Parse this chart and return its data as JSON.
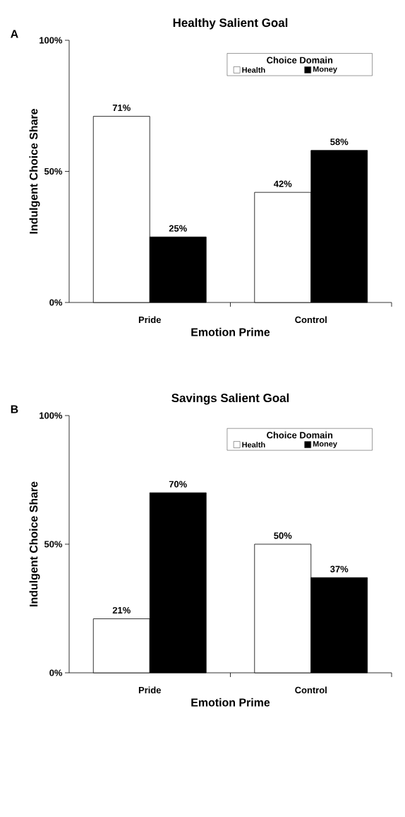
{
  "chart_data": [
    {
      "type": "bar",
      "title": "Healthy Salient Goal",
      "annotations": [
        "A"
      ],
      "xlabel": "Emotion Prime",
      "ylabel": "Indulgent Choice Share",
      "categories": [
        "Pride",
        "Control"
      ],
      "series": [
        {
          "name": "Health",
          "color": "#ffffff",
          "values": [
            71,
            42
          ],
          "value_labels": [
            "71%",
            "42%"
          ]
        },
        {
          "name": "Money",
          "color": "#000000",
          "values": [
            25,
            58
          ],
          "value_labels": [
            "25%",
            "58%"
          ]
        }
      ],
      "legend_title": "Choice Domain",
      "legend": "top right",
      "grid": false,
      "ylim": [
        0,
        100
      ],
      "yticks": [
        {
          "value": 0,
          "label": "0%"
        },
        {
          "value": 50,
          "label": "50%"
        },
        {
          "value": 100,
          "label": "100%"
        }
      ]
    },
    {
      "type": "bar",
      "title": "Savings Salient Goal",
      "annotations": [
        "B"
      ],
      "xlabel": "Emotion Prime",
      "ylabel": "Indulgent Choice Share",
      "categories": [
        "Pride",
        "Control"
      ],
      "series": [
        {
          "name": "Health",
          "color": "#ffffff",
          "values": [
            21,
            50
          ],
          "value_labels": [
            "21%",
            "50%"
          ]
        },
        {
          "name": "Money",
          "color": "#000000",
          "values": [
            70,
            37
          ],
          "value_labels": [
            "70%",
            "37%"
          ]
        }
      ],
      "legend_title": "Choice Domain",
      "legend": "top right",
      "grid": false,
      "ylim": [
        0,
        100
      ],
      "yticks": [
        {
          "value": 0,
          "label": "0%"
        },
        {
          "value": 50,
          "label": "50%"
        },
        {
          "value": 100,
          "label": "100%"
        }
      ]
    }
  ]
}
